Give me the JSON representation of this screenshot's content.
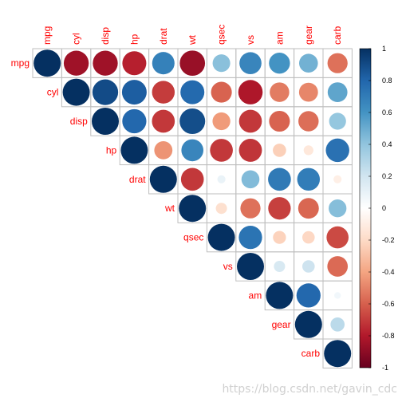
{
  "chart_data": {
    "type": "heatmap",
    "variables": [
      "mpg",
      "cyl",
      "disp",
      "hp",
      "drat",
      "wt",
      "qsec",
      "vs",
      "am",
      "gear",
      "carb"
    ],
    "upper_triangle_correlations": [
      [
        1.0,
        -0.85,
        -0.85,
        -0.78,
        0.68,
        -0.87,
        0.42,
        0.66,
        0.6,
        0.48,
        -0.55
      ],
      [
        null,
        1.0,
        0.9,
        0.83,
        -0.7,
        0.78,
        -0.59,
        -0.81,
        -0.52,
        -0.49,
        0.53
      ],
      [
        null,
        null,
        1.0,
        0.79,
        -0.71,
        0.89,
        -0.43,
        -0.71,
        -0.59,
        -0.56,
        0.39
      ],
      [
        null,
        null,
        null,
        1.0,
        -0.45,
        0.66,
        -0.71,
        -0.72,
        -0.24,
        -0.13,
        0.75
      ],
      [
        null,
        null,
        null,
        null,
        1.0,
        -0.71,
        0.09,
        0.44,
        0.71,
        0.7,
        -0.09
      ],
      [
        null,
        null,
        null,
        null,
        null,
        1.0,
        -0.17,
        -0.55,
        -0.69,
        -0.58,
        0.43
      ],
      [
        null,
        null,
        null,
        null,
        null,
        null,
        1.0,
        0.74,
        -0.23,
        -0.21,
        -0.66
      ],
      [
        null,
        null,
        null,
        null,
        null,
        null,
        null,
        1.0,
        0.17,
        0.21,
        -0.57
      ],
      [
        null,
        null,
        null,
        null,
        null,
        null,
        null,
        null,
        1.0,
        0.79,
        0.06
      ],
      [
        null,
        null,
        null,
        null,
        null,
        null,
        null,
        null,
        null,
        1.0,
        0.27
      ],
      [
        null,
        null,
        null,
        null,
        null,
        null,
        null,
        null,
        null,
        null,
        1.0
      ]
    ],
    "colorbar": {
      "ticks": [
        "1",
        "0.8",
        "0.6",
        "0.4",
        "0.2",
        "0",
        "-0.2",
        "-0.4",
        "-0.6",
        "-0.8",
        "-1"
      ],
      "range": [
        -1,
        1
      ],
      "colors_negative_to_positive": [
        "#67001F",
        "#B2182B",
        "#D6604D",
        "#F4A582",
        "#FDDBC7",
        "#FFFFFF",
        "#D1E5F0",
        "#92C5DE",
        "#4393C3",
        "#2166AC",
        "#053061"
      ]
    },
    "label_color": "#ff0000",
    "grid_color": "#bebebe"
  },
  "watermark": "https://blog.csdn.net/gavin_cdc"
}
